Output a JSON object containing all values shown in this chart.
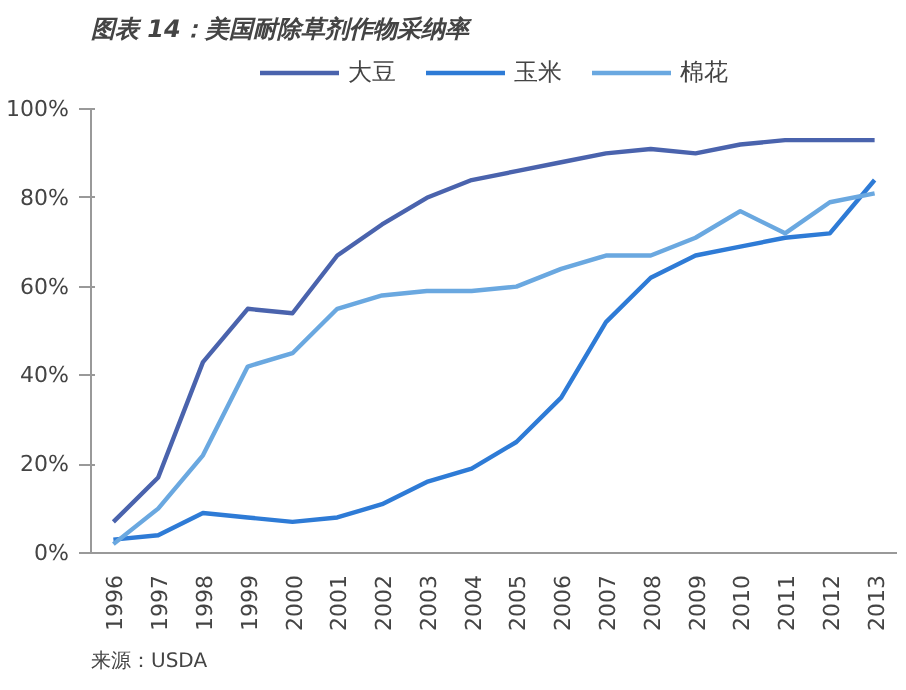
{
  "chart_data": {
    "type": "line",
    "title": "图表 14：美国耐除草剂作物采纳率",
    "annotations": [
      "来源：USDA"
    ],
    "categories": [
      "1996",
      "1997",
      "1998",
      "1999",
      "2000",
      "2001",
      "2002",
      "2003",
      "2004",
      "2005",
      "2006",
      "2007",
      "2008",
      "2009",
      "2010",
      "2011",
      "2012",
      "2013"
    ],
    "series": [
      {
        "name": "大豆",
        "color": "#4a63ad",
        "values": [
          7,
          17,
          43,
          55,
          54,
          67,
          74,
          80,
          84,
          86,
          88,
          90,
          91,
          90,
          92,
          93,
          93,
          93
        ]
      },
      {
        "name": "玉米",
        "color": "#2e7bd6",
        "values": [
          3,
          4,
          9,
          8,
          7,
          8,
          11,
          16,
          19,
          25,
          35,
          52,
          62,
          67,
          69,
          71,
          72,
          84
        ]
      },
      {
        "name": "棉花",
        "color": "#6aa8e0",
        "values": [
          2,
          10,
          22,
          42,
          45,
          55,
          58,
          59,
          59,
          60,
          64,
          67,
          67,
          71,
          77,
          72,
          79,
          81
        ]
      }
    ],
    "ylim": [
      0,
      100
    ],
    "yticks": [
      {
        "value": 0,
        "label": "0%"
      },
      {
        "value": 20,
        "label": "20%"
      },
      {
        "value": 40,
        "label": "40%"
      },
      {
        "value": 60,
        "label": "60%"
      },
      {
        "value": 80,
        "label": "80%"
      },
      {
        "value": 100,
        "label": "100%"
      }
    ],
    "grid": false,
    "legend": "top",
    "marker": "none",
    "line_style": "solid"
  }
}
